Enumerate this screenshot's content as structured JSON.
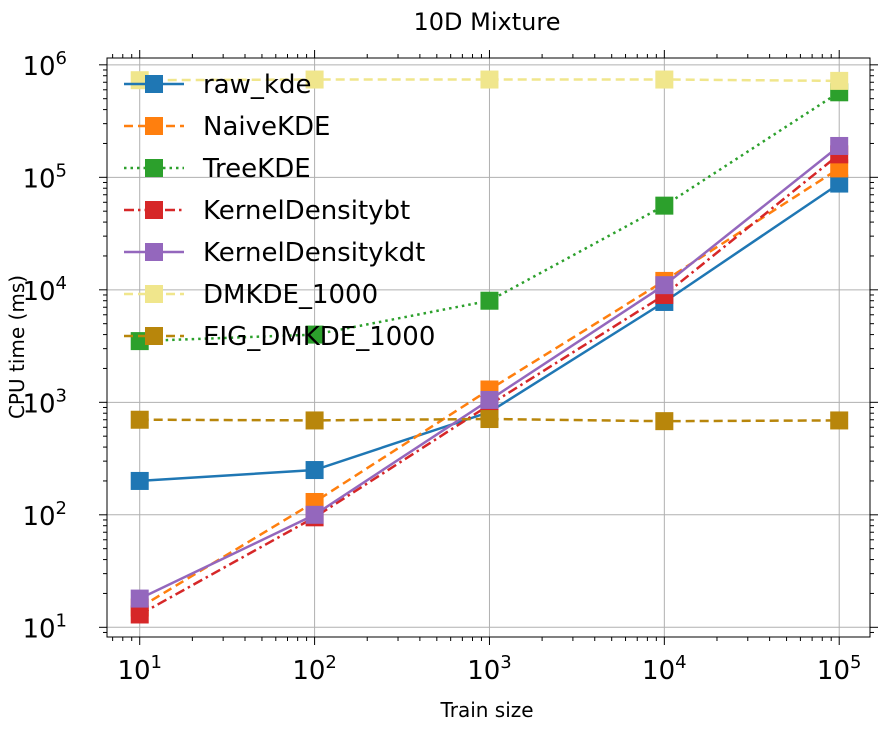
{
  "chart_data": {
    "type": "line",
    "title": "10D Mixture",
    "xlabel": "Train size",
    "ylabel": "CPU time (ms)",
    "xscale": "log",
    "yscale": "log",
    "xlim": [
      6.5,
      150000
    ],
    "ylim": [
      8.2,
      1150000
    ],
    "grid": true,
    "legend_position": "upper-left",
    "x": [
      10,
      100,
      1000,
      10000,
      100000
    ],
    "xticks": [
      {
        "value": 10,
        "base": "10",
        "exp": "1"
      },
      {
        "value": 100,
        "base": "10",
        "exp": "2"
      },
      {
        "value": 1000,
        "base": "10",
        "exp": "3"
      },
      {
        "value": 10000,
        "base": "10",
        "exp": "4"
      },
      {
        "value": 100000,
        "base": "10",
        "exp": "5"
      }
    ],
    "yticks": [
      {
        "value": 10,
        "base": "10",
        "exp": "1"
      },
      {
        "value": 100,
        "base": "10",
        "exp": "2"
      },
      {
        "value": 1000,
        "base": "10",
        "exp": "3"
      },
      {
        "value": 10000,
        "base": "10",
        "exp": "4"
      },
      {
        "value": 100000,
        "base": "10",
        "exp": "5"
      },
      {
        "value": 1000000,
        "base": "10",
        "exp": "6"
      }
    ],
    "series": [
      {
        "name": "raw_kde",
        "color": "#1f77b4",
        "dash": "solid",
        "values": [
          200,
          250,
          820,
          7800,
          88000
        ]
      },
      {
        "name": "NaiveKDE",
        "color": "#ff7f0e",
        "dash": "dashed",
        "values": [
          15,
          130,
          1300,
          12000,
          120000
        ]
      },
      {
        "name": "TreeKDE",
        "color": "#2ca02c",
        "dash": "dotted",
        "values": [
          3500,
          4000,
          8000,
          56000,
          570000
        ]
      },
      {
        "name": "KernelDensitybt",
        "color": "#d62728",
        "dash": "dashdot",
        "values": [
          13,
          95,
          950,
          9000,
          160000
        ]
      },
      {
        "name": "KernelDensitykdt",
        "color": "#9467bd",
        "dash": "solid",
        "values": [
          18,
          100,
          1050,
          11000,
          190000
        ]
      },
      {
        "name": "DMKDE_1000",
        "color": "#f0e68c",
        "dash": "dashed",
        "values": [
          730000,
          740000,
          740000,
          740000,
          720000
        ]
      },
      {
        "name": "EIG_DMKDE_1000",
        "color": "#b8860b",
        "dash": "dashed",
        "values": [
          700,
          690,
          710,
          680,
          690
        ]
      }
    ]
  }
}
